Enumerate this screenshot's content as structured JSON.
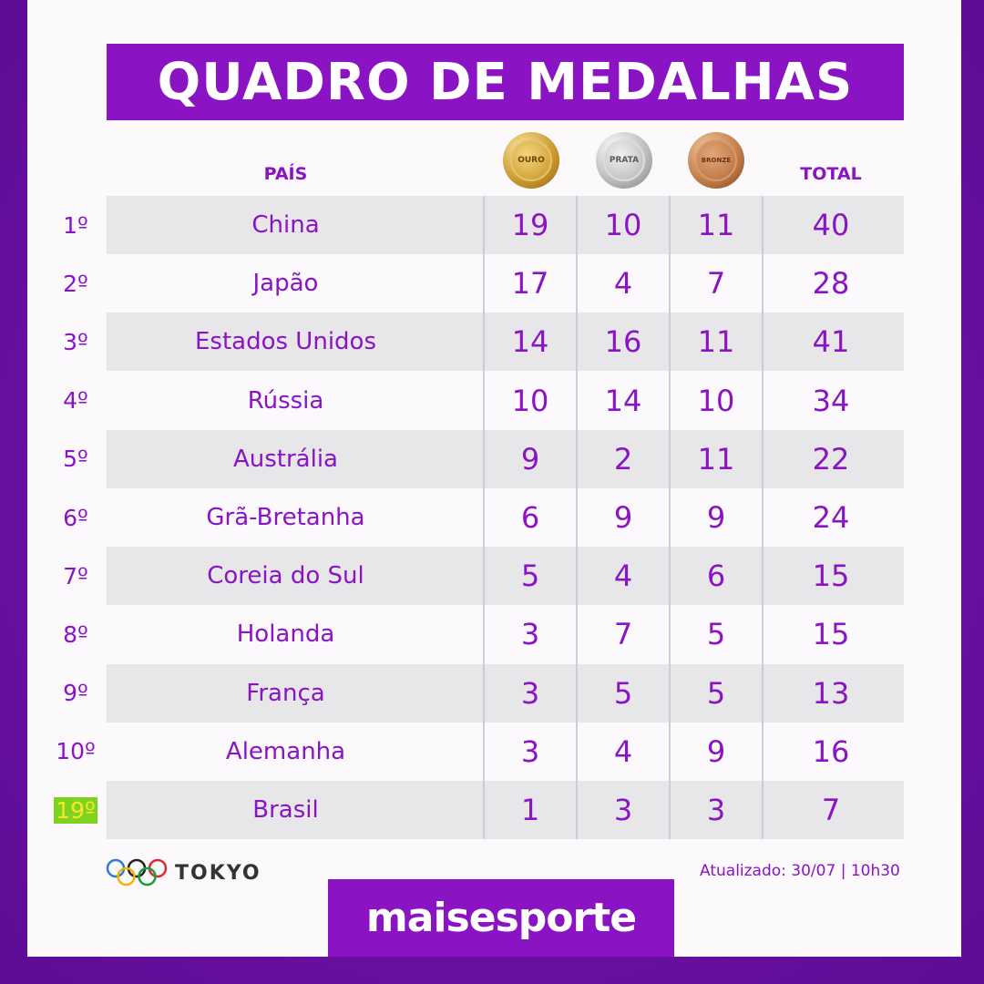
{
  "title": "QUADRO DE MEDALHAS",
  "headers": {
    "country": "PAÍS",
    "gold": "OURO",
    "silver": "PRATA",
    "bronze": "BRONZE",
    "total": "TOTAL"
  },
  "rows": [
    {
      "rank": "1º",
      "country": "China",
      "gold": "19",
      "silver": "10",
      "bronze": "11",
      "total": "40"
    },
    {
      "rank": "2º",
      "country": "Japão",
      "gold": "17",
      "silver": "4",
      "bronze": "7",
      "total": "28"
    },
    {
      "rank": "3º",
      "country": "Estados Unidos",
      "gold": "14",
      "silver": "16",
      "bronze": "11",
      "total": "41"
    },
    {
      "rank": "4º",
      "country": "Rússia",
      "gold": "10",
      "silver": "14",
      "bronze": "10",
      "total": "34"
    },
    {
      "rank": "5º",
      "country": "Austrália",
      "gold": "9",
      "silver": "2",
      "bronze": "11",
      "total": "22"
    },
    {
      "rank": "6º",
      "country": "Grã-Bretanha",
      "gold": "6",
      "silver": "9",
      "bronze": "9",
      "total": "24"
    },
    {
      "rank": "7º",
      "country": "Coreia do Sul",
      "gold": "5",
      "silver": "4",
      "bronze": "6",
      "total": "15"
    },
    {
      "rank": "8º",
      "country": "Holanda",
      "gold": "3",
      "silver": "7",
      "bronze": "5",
      "total": "15"
    },
    {
      "rank": "9º",
      "country": "França",
      "gold": "3",
      "silver": "5",
      "bronze": "5",
      "total": "13"
    },
    {
      "rank": "10º",
      "country": "Alemanha",
      "gold": "3",
      "silver": "4",
      "bronze": "9",
      "total": "16"
    },
    {
      "rank": "19º",
      "country": "Brasil",
      "gold": "1",
      "silver": "3",
      "bronze": "3",
      "total": "7"
    }
  ],
  "footer": {
    "event": "TOKYO",
    "updated": "Atualizado: 30/07 | 10h30",
    "brand": "maisesporte"
  },
  "colors": {
    "accent": "#8a14c4",
    "row_shade": "#e7e6e8",
    "highlight_bg": "#7ed321",
    "highlight_text": "#f5e62a"
  }
}
